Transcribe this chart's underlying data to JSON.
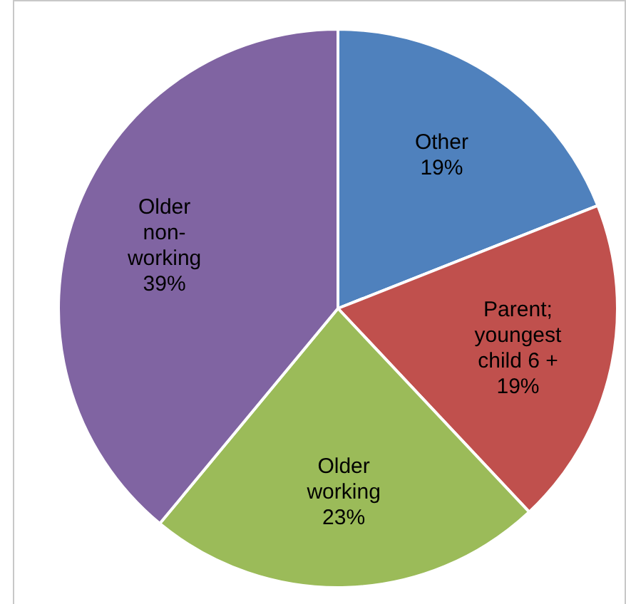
{
  "chart_data": {
    "type": "pie",
    "categories": [
      "Other",
      "Parent; youngest child 6 +",
      "Older working",
      "Older non-working"
    ],
    "values": [
      19,
      19,
      23,
      39
    ],
    "colors": [
      "#4f81bd",
      "#c0504d",
      "#9bbb59",
      "#8064a2"
    ],
    "value_labels": [
      "19%",
      "19%",
      "23%",
      "39%"
    ],
    "legend": false
  }
}
